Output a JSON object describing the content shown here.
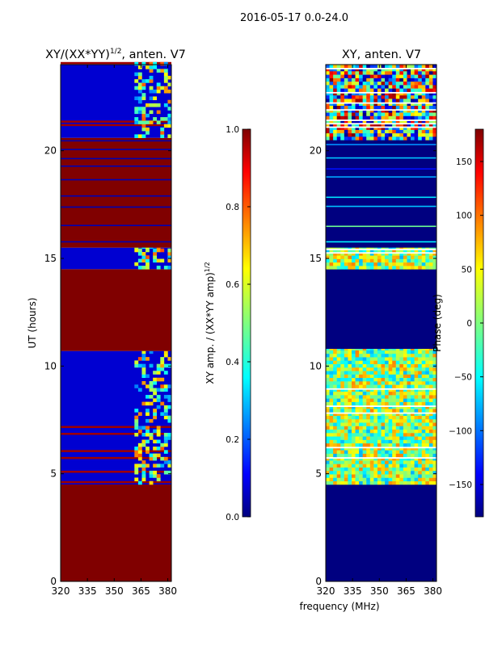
{
  "figure": {
    "suptitle": "2016-05-17 0.0-24.0",
    "xlabel_shared": "frequency (MHz)"
  },
  "colors": {
    "jet_stops": [
      "#00007f",
      "#0000ff",
      "#007fff",
      "#00ffff",
      "#7fff7f",
      "#ffff00",
      "#ff7f00",
      "#ff0000",
      "#7f0000"
    ]
  },
  "chart_data": [
    {
      "type": "heatmap",
      "id": "amp",
      "title": "XY/(XX*YY)",
      "title_power": "1/2",
      "title_suffix": ", anten. V7",
      "ylabel": "UT (hours)",
      "xlim": [
        320,
        382
      ],
      "ylim": [
        0,
        24
      ],
      "xticks": [
        320,
        335,
        350,
        365,
        380
      ],
      "yticks": [
        0,
        5,
        10,
        15,
        20
      ],
      "colorbar": {
        "label": "XY amp. / (XX*YY amp)",
        "label_power": "1/2",
        "range": [
          0.0,
          1.0
        ],
        "ticks": [
          "0.0",
          "0.2",
          "0.4",
          "0.6",
          "0.8",
          "1.0"
        ]
      },
      "bands": [
        {
          "y0": 0.0,
          "y1": 4.5,
          "kind": "saturated",
          "value": 1.0
        },
        {
          "y0": 4.5,
          "y1": 10.7,
          "kind": "low_noisy",
          "value": 0.08
        },
        {
          "y0": 10.7,
          "y1": 14.5,
          "kind": "saturated",
          "value": 1.0
        },
        {
          "y0": 14.5,
          "y1": 15.5,
          "kind": "low_noisy",
          "value": 0.08
        },
        {
          "y0": 15.5,
          "y1": 20.6,
          "kind": "saturated_lines",
          "value": 1.0
        },
        {
          "y0": 20.6,
          "y1": 24.0,
          "kind": "low_noisy",
          "value": 0.08
        }
      ]
    },
    {
      "type": "heatmap",
      "id": "phase",
      "title": "XY, anten. V7",
      "xlim": [
        320,
        382
      ],
      "ylim": [
        0,
        24
      ],
      "xticks": [
        320,
        335,
        350,
        365,
        380
      ],
      "yticks": [
        0,
        5,
        10,
        15,
        20
      ],
      "colorbar": {
        "label": "Phase (deg)",
        "range": [
          -180,
          180
        ],
        "ticks": [
          "−150",
          "−100",
          "−50",
          "0",
          "50",
          "100",
          "150"
        ],
        "tick_values": [
          -150,
          -100,
          -50,
          0,
          50,
          100,
          150
        ]
      },
      "bands": [
        {
          "y0": 0.0,
          "y1": 4.5,
          "kind": "flat",
          "value": -180
        },
        {
          "y0": 4.5,
          "y1": 10.8,
          "kind": "striped",
          "value": -20
        },
        {
          "y0": 10.8,
          "y1": 14.5,
          "kind": "flat",
          "value": -180
        },
        {
          "y0": 14.5,
          "y1": 15.5,
          "kind": "striped",
          "value": -30
        },
        {
          "y0": 15.5,
          "y1": 20.5,
          "kind": "flat_lines",
          "value": -180
        },
        {
          "y0": 20.5,
          "y1": 24.0,
          "kind": "noisy",
          "value": -60
        }
      ]
    }
  ]
}
